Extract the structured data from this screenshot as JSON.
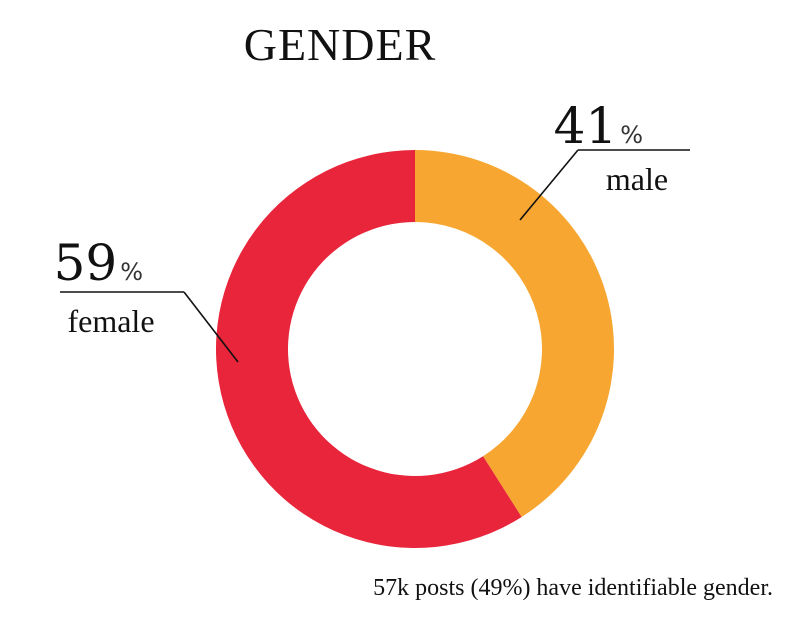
{
  "chart_data": {
    "type": "pie",
    "title": "GENDER",
    "donut": true,
    "start_angle_deg": 0,
    "direction": "clockwise",
    "slices": [
      {
        "key": "male",
        "label": "male",
        "value": 41,
        "value_text": "41",
        "unit": "%",
        "color": "#F7A731"
      },
      {
        "key": "female",
        "label": "female",
        "value": 59,
        "value_text": "59",
        "unit": "%",
        "color": "#E8253A"
      }
    ],
    "footnote": "57k posts (49%) have identifiable gender."
  }
}
